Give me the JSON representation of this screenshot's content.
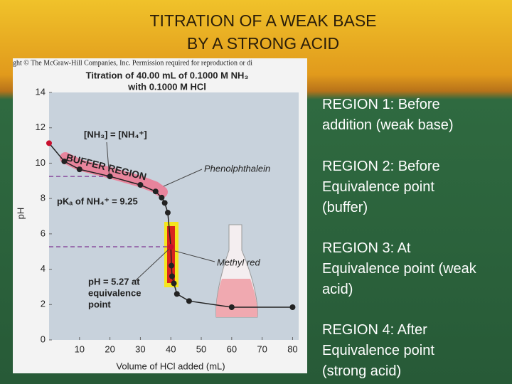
{
  "slide": {
    "title_lines": [
      "TITRATION OF A WEAK BASE",
      "BY A STRONG ACID"
    ],
    "regions": [
      [
        "REGION 1: Before",
        "addition (weak base)"
      ],
      [
        "REGION 2: Before",
        "Equivalence point",
        "(buffer)"
      ],
      [
        "REGION 3: At",
        "Equivalence point (weak",
        "acid)"
      ],
      [
        "REGION 4: After",
        "Equivalence point",
        "(strong acid)"
      ]
    ]
  },
  "chart_data": {
    "type": "line",
    "copyright": "ght © The McGraw-Hill Companies, Inc. Permission required for reproduction or di",
    "title_lines": [
      "Titration of 40.00 mL of 0.1000 M NH₃",
      "with 0.1000 M HCl"
    ],
    "x_label": "Volume of HCl added (mL)",
    "y_label": "pH",
    "annotations": {
      "half_equivalence": "[NH₃] = [NH₄⁺]",
      "buffer": "BUFFER REGION",
      "phenolphthalein": "Phenolphthalein",
      "pka": "pKₐ of NH₄⁺ = 9.25",
      "methyl_red": "Methyl red",
      "equivalence": [
        "pH = 5.27 at",
        "equivalence",
        "point"
      ]
    },
    "x": [
      0,
      5,
      10,
      20,
      30,
      35,
      37,
      38,
      39,
      40,
      40.2,
      40.4,
      41,
      42,
      46,
      60,
      80
    ],
    "values": [
      11.13,
      10.1,
      9.65,
      9.25,
      8.77,
      8.4,
      8.05,
      7.75,
      7.2,
      5.27,
      4.2,
      3.6,
      3.2,
      2.6,
      2.2,
      1.85,
      1.85
    ],
    "color": "#222222",
    "marker_colors": [
      "#c8102e",
      "#222222",
      "#222222",
      "#222222",
      "#222222",
      "#222222",
      "#222222",
      "#222222",
      "#222222",
      "#c8102e",
      "#222222",
      "#222222",
      "#222222",
      "#222222",
      "#222222",
      "#222222",
      "#222222"
    ],
    "xlim": [
      0,
      82
    ],
    "ylim": [
      0,
      14
    ],
    "xticks": [
      10,
      20,
      30,
      40,
      50,
      60,
      70,
      80
    ],
    "yticks": [
      0,
      2,
      4,
      6,
      8,
      10,
      12,
      14
    ]
  }
}
